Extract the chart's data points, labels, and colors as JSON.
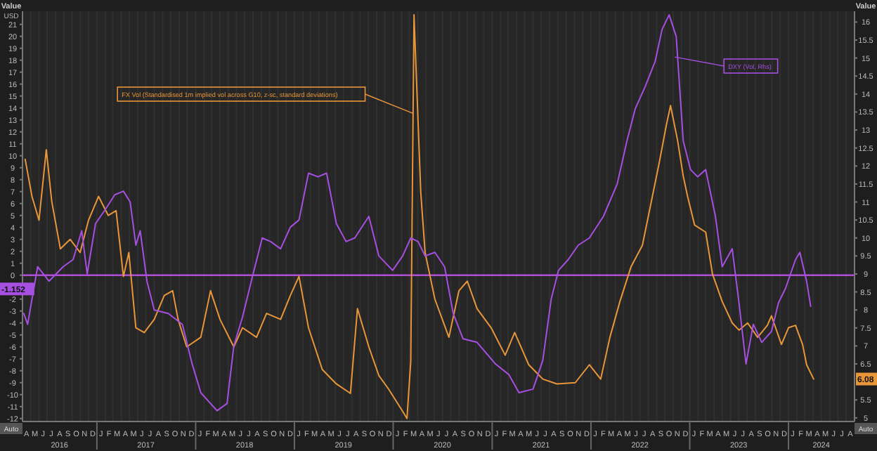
{
  "chart_data": {
    "type": "line",
    "ylabel": "Value",
    "y2label": "Value",
    "annotations": [
      "FX Vol (Standardised 1m implied vol across G10, z-sc, standard deviations)",
      "DXY (Vol, Rhs)",
      "USD",
      "Auto",
      "Auto",
      "A",
      "M",
      "J",
      "J",
      "A",
      "S",
      "O",
      "N",
      "D",
      "J",
      "F",
      "M",
      "A",
      "M",
      "J",
      "J",
      "A",
      "S",
      "O",
      "N",
      "D",
      "J",
      "F",
      "M",
      "A",
      "M",
      "J",
      "J",
      "A",
      "S",
      "O",
      "N",
      "D",
      "J",
      "F",
      "M",
      "A",
      "M",
      "J",
      "J",
      "A",
      "S",
      "O",
      "N",
      "D",
      "J",
      "F",
      "M",
      "A",
      "M",
      "J",
      "J",
      "A",
      "S",
      "O",
      "N",
      "D",
      "J",
      "F",
      "M",
      "A",
      "M",
      "J",
      "J",
      "A",
      "S",
      "O",
      "N",
      "D",
      "J",
      "F",
      "M",
      "A",
      "M",
      "J",
      "J",
      "A",
      "S",
      "O",
      "N",
      "D",
      "J",
      "F",
      "M",
      "A",
      "M",
      "J",
      "J",
      "A",
      "S",
      "O",
      "N",
      "D",
      "J",
      "F",
      "M",
      "A",
      "M",
      "J",
      "J",
      "A"
    ],
    "xlim": [
      "2016-04-01",
      "2024-09-01"
    ],
    "xticks": [
      {
        "value": "2017-01-01",
        "label": null
      },
      {
        "value": "2018-01-01",
        "label": null
      },
      {
        "value": "2019-01-01",
        "label": null
      },
      {
        "value": "2020-01-01",
        "label": null
      },
      {
        "value": "2021-01-01",
        "label": null
      },
      {
        "value": "2022-01-01",
        "label": null
      },
      {
        "value": "2023-01-01",
        "label": null
      },
      {
        "value": "2024-01-01",
        "label": null
      },
      {
        "value": "2016-08-16",
        "label": "2016"
      },
      {
        "value": "2017-07-01",
        "label": "2017"
      },
      {
        "value": "2018-07-01",
        "label": "2018"
      },
      {
        "value": "2019-07-01",
        "label": "2019"
      },
      {
        "value": "2020-07-01",
        "label": "2020"
      },
      {
        "value": "2021-07-01",
        "label": "2021"
      },
      {
        "value": "2022-07-01",
        "label": "2022"
      },
      {
        "value": "2023-07-01",
        "label": "2023"
      },
      {
        "value": "2024-05-01",
        "label": "2024"
      }
    ],
    "ylim": [
      -12.25,
      22.1
    ],
    "yticks": [
      21,
      20,
      19,
      18,
      17,
      16,
      15,
      14,
      13,
      12,
      11,
      10,
      9,
      8,
      7,
      6,
      5,
      4,
      3,
      2,
      1,
      0,
      -2,
      -3,
      -4,
      -5,
      -6,
      -7,
      -8,
      -9,
      -10,
      -11,
      -12,
      {
        "value": -1.152,
        "label": "-1.152"
      }
    ],
    "y2lim": [
      4.9,
      16.3
    ],
    "y2ticks": [
      16,
      15.5,
      15,
      14.5,
      14,
      13.5,
      13,
      12.5,
      12,
      11.5,
      11,
      10.5,
      10,
      9.5,
      9,
      8.5,
      8,
      7.5,
      7,
      6.5,
      5.5,
      5,
      {
        "value": 6.08,
        "label": "6.08"
      }
    ],
    "grid": "x",
    "ref_lines": [
      {
        "axis": "y",
        "value": 0,
        "color": "#b04fd6"
      }
    ],
    "series": [
      {
        "color": "#e8963a",
        "x": [
          "2016-04-11",
          "2016-05-06",
          "2016-06-01",
          "2016-06-28",
          "2016-07-18",
          "2016-08-19",
          "2016-09-24",
          "2016-10-31",
          "2016-12-01",
          "2017-01-07",
          "2017-02-12",
          "2017-03-13",
          "2017-04-09",
          "2017-04-29",
          "2017-05-25",
          "2017-06-25",
          "2017-08-01",
          "2017-09-07",
          "2017-10-08",
          "2017-10-28",
          "2017-11-29",
          "2018-01-20",
          "2018-02-25",
          "2018-04-01",
          "2018-05-22",
          "2018-06-23",
          "2018-08-14",
          "2018-09-20",
          "2018-11-11",
          "2018-12-17",
          "2019-01-18",
          "2019-02-22",
          "2019-04-14",
          "2019-06-05",
          "2019-07-27",
          "2019-08-22",
          "2019-10-03",
          "2019-11-09",
          "2019-12-14",
          "2020-02-05",
          "2020-02-21",
          "2020-03-06",
          "2020-03-18",
          "2020-04-12",
          "2020-04-28",
          "2020-06-03",
          "2020-07-25",
          "2020-08-31",
          "2020-10-01",
          "2020-11-06",
          "2020-12-28",
          "2021-02-18",
          "2021-03-25",
          "2021-05-16",
          "2021-07-07",
          "2021-08-28",
          "2021-11-04",
          "2021-12-26",
          "2022-02-06",
          "2022-03-12",
          "2022-04-18",
          "2022-05-29",
          "2022-07-10",
          "2022-08-16",
          "2022-09-11",
          "2022-10-06",
          "2022-10-22",
          "2022-11-17",
          "2022-12-08",
          "2022-12-24",
          "2023-01-19",
          "2023-03-01",
          "2023-03-26",
          "2023-05-01",
          "2023-06-07",
          "2023-07-02",
          "2023-08-03",
          "2023-09-09",
          "2023-10-15",
          "2023-10-30",
          "2023-12-06",
          "2024-01-01",
          "2024-01-27",
          "2024-02-22",
          "2024-03-08",
          "2024-04-03"
        ],
        "values": [
          9.7,
          6.6,
          4.6,
          10.5,
          6.2,
          2.2,
          3.0,
          1.9,
          4.6,
          6.6,
          5.0,
          5.4,
          -0.1,
          1.9,
          -4.4,
          -4.8,
          -3.7,
          -1.7,
          -1.3,
          -3.7,
          -6.0,
          -5.2,
          -1.3,
          -3.7,
          -6.0,
          -4.4,
          -5.2,
          -3.2,
          -3.7,
          -1.7,
          -0.1,
          -4.4,
          -7.9,
          -9.1,
          -9.9,
          -2.8,
          -6.0,
          -8.4,
          -9.5,
          -11.4,
          -12.0,
          -7.2,
          21.8,
          6.9,
          1.9,
          -2.0,
          -5.2,
          -1.3,
          -0.5,
          -2.8,
          -4.4,
          -6.7,
          -4.8,
          -7.5,
          -8.7,
          -9.1,
          -9.0,
          -7.5,
          -8.7,
          -5.2,
          -2.2,
          0.7,
          2.5,
          6.6,
          9.5,
          12.5,
          14.2,
          11.3,
          8.3,
          6.6,
          4.2,
          3.6,
          0.1,
          -2.2,
          -4.0,
          -4.6,
          -4.0,
          -5.2,
          -4.2,
          -3.4,
          -5.8,
          -4.4,
          -4.2,
          -5.8,
          -7.5,
          -8.7
        ]
      },
      {
        "color": "#a64fe0",
        "axis": "y2",
        "x": [
          "2016-04-06",
          "2016-04-20",
          "2016-05-27",
          "2016-07-08",
          "2016-08-29",
          "2016-10-05",
          "2016-11-06",
          "2016-11-26",
          "2016-12-27",
          "2017-02-02",
          "2017-03-08",
          "2017-04-09",
          "2017-05-04",
          "2017-05-25",
          "2017-06-10",
          "2017-07-05",
          "2017-08-01",
          "2017-09-22",
          "2017-11-13",
          "2017-12-19",
          "2018-01-20",
          "2018-03-21",
          "2018-04-27",
          "2018-05-22",
          "2018-06-23",
          "2018-07-29",
          "2018-09-04",
          "2018-10-05",
          "2018-11-11",
          "2018-12-17",
          "2019-01-18",
          "2019-02-22",
          "2019-03-29",
          "2019-04-30",
          "2019-06-05",
          "2019-07-11",
          "2019-08-12",
          "2019-10-03",
          "2019-11-09",
          "2019-12-30",
          "2020-02-05",
          "2020-03-06",
          "2020-04-02",
          "2020-04-28",
          "2020-06-03",
          "2020-07-09",
          "2020-08-10",
          "2020-09-15",
          "2020-11-06",
          "2021-01-13",
          "2021-03-04",
          "2021-04-10",
          "2021-06-01",
          "2021-07-07",
          "2021-08-07",
          "2021-09-03",
          "2021-10-09",
          "2021-11-15",
          "2021-12-26",
          "2022-02-16",
          "2022-04-08",
          "2022-05-14",
          "2022-06-14",
          "2022-07-20",
          "2022-08-26",
          "2022-09-21",
          "2022-10-17",
          "2022-11-12",
          "2022-12-08",
          "2023-01-04",
          "2023-01-30",
          "2023-03-01",
          "2023-04-06",
          "2023-05-01",
          "2023-06-07",
          "2023-07-02",
          "2023-07-28",
          "2023-08-24",
          "2023-09-24",
          "2023-10-30",
          "2023-11-25",
          "2023-12-21",
          "2024-01-27",
          "2024-02-12",
          "2024-03-08",
          "2024-03-23"
        ],
        "values": [
          7.9,
          7.6,
          9.2,
          8.8,
          9.2,
          9.4,
          10.2,
          9.0,
          10.4,
          10.8,
          11.2,
          11.3,
          11.0,
          9.8,
          10.2,
          8.8,
          8.0,
          7.9,
          7.6,
          6.5,
          5.7,
          5.2,
          5.4,
          7.0,
          7.8,
          8.9,
          10.0,
          9.9,
          9.7,
          10.3,
          10.5,
          11.8,
          11.7,
          11.8,
          10.4,
          9.9,
          10.0,
          10.6,
          9.5,
          9.1,
          9.5,
          10.0,
          9.9,
          9.5,
          9.6,
          9.2,
          7.9,
          7.2,
          7.1,
          6.5,
          6.2,
          5.7,
          5.8,
          6.6,
          8.3,
          9.1,
          9.4,
          9.8,
          10.0,
          10.6,
          11.5,
          12.7,
          13.6,
          14.2,
          14.9,
          15.8,
          16.2,
          15.6,
          12.7,
          11.9,
          11.7,
          11.9,
          10.6,
          9.2,
          9.7,
          8.2,
          6.5,
          7.6,
          7.1,
          7.4,
          8.2,
          8.6,
          9.4,
          9.6,
          8.8,
          8.1
        ]
      }
    ]
  }
}
